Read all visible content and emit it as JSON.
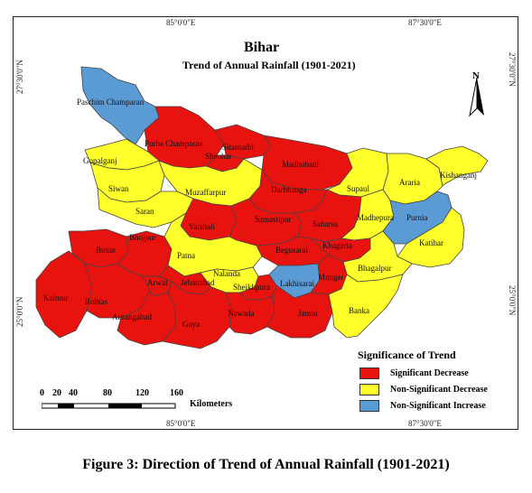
{
  "map": {
    "title": "Bihar",
    "subtitle": "Trend of Annual Rainfall (1901-2021)",
    "north_label": "N",
    "coords": {
      "top_left": "85°0'0\"E",
      "top_right": "87°30'0\"E",
      "bottom_left": "85°0'0\"E",
      "bottom_right": "87°30'0\"E",
      "left_top": "27°30'0\"N",
      "left_bottom": "25°0'0\"N",
      "right_top": "27°30'0\"N",
      "right_bottom": "25°0'0\"N"
    },
    "colors": {
      "significant_decrease": "#e8120e",
      "non_significant_decrease": "#ffff2b",
      "non_significant_increase": "#5b9bd5",
      "boundary": "#444444"
    },
    "districts": [
      {
        "name": "Paschim Champaran",
        "trend": "non_significant_increase"
      },
      {
        "name": "Purba Champaran",
        "trend": "significant_decrease"
      },
      {
        "name": "Sitamarhi",
        "trend": "significant_decrease"
      },
      {
        "name": "Sheohar",
        "trend": "significant_decrease"
      },
      {
        "name": "Madhubani",
        "trend": "significant_decrease"
      },
      {
        "name": "Supaul",
        "trend": "non_significant_decrease"
      },
      {
        "name": "Araria",
        "trend": "non_significant_decrease"
      },
      {
        "name": "Kishanganj",
        "trend": "non_significant_decrease"
      },
      {
        "name": "Gopalganj",
        "trend": "non_significant_decrease"
      },
      {
        "name": "Siwan",
        "trend": "non_significant_decrease"
      },
      {
        "name": "Muzaffarpur",
        "trend": "non_significant_decrease"
      },
      {
        "name": "Darbhanga",
        "trend": "significant_decrease"
      },
      {
        "name": "Saran",
        "trend": "non_significant_decrease"
      },
      {
        "name": "Vaishali",
        "trend": "significant_decrease"
      },
      {
        "name": "Samastipur",
        "trend": "significant_decrease"
      },
      {
        "name": "Saharsa",
        "trend": "significant_decrease"
      },
      {
        "name": "Madhepura",
        "trend": "non_significant_decrease"
      },
      {
        "name": "Purnia",
        "trend": "non_significant_increase"
      },
      {
        "name": "Katihar",
        "trend": "non_significant_decrease"
      },
      {
        "name": "Buxar",
        "trend": "significant_decrease"
      },
      {
        "name": "Bhojpur",
        "trend": "significant_decrease"
      },
      {
        "name": "Patna",
        "trend": "non_significant_decrease"
      },
      {
        "name": "Begusarai",
        "trend": "significant_decrease"
      },
      {
        "name": "Khagaria",
        "trend": "significant_decrease"
      },
      {
        "name": "Bhagalpur",
        "trend": "non_significant_decrease"
      },
      {
        "name": "Kaimur",
        "trend": "significant_decrease"
      },
      {
        "name": "Rohtas",
        "trend": "significant_decrease"
      },
      {
        "name": "Arwal",
        "trend": "significant_decrease"
      },
      {
        "name": "Jehanabad",
        "trend": "significant_decrease"
      },
      {
        "name": "Nalanda",
        "trend": "non_significant_decrease"
      },
      {
        "name": "Sheikhpura",
        "trend": "significant_decrease"
      },
      {
        "name": "Lakhisarai",
        "trend": "non_significant_increase"
      },
      {
        "name": "Munger",
        "trend": "significant_decrease"
      },
      {
        "name": "Aurangabad",
        "trend": "significant_decrease"
      },
      {
        "name": "Gaya",
        "trend": "significant_decrease"
      },
      {
        "name": "Nawada",
        "trend": "significant_decrease"
      },
      {
        "name": "Jamui",
        "trend": "significant_decrease"
      },
      {
        "name": "Banka",
        "trend": "non_significant_decrease"
      }
    ]
  },
  "legend": {
    "title": "Significance of Trend",
    "items": [
      {
        "label": "Significant Decrease",
        "color": "#e8120e"
      },
      {
        "label": "Non-Significant Decrease",
        "color": "#ffff2b"
      },
      {
        "label": "Non-Significant Increase",
        "color": "#5b9bd5"
      }
    ]
  },
  "scale": {
    "ticks": [
      "0",
      "20",
      "40",
      "80",
      "120",
      "160"
    ],
    "unit": "Kilometers"
  },
  "caption": "Figure 3: Direction of Trend of Annual Rainfall (1901-2021)"
}
